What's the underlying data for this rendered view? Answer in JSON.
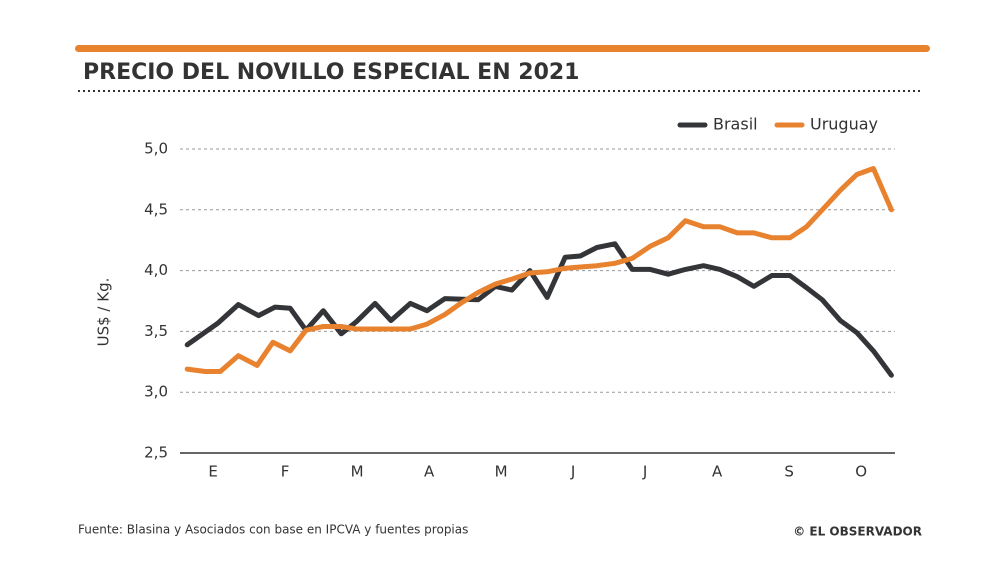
{
  "chart_data": {
    "type": "line",
    "title": "PRECIO DEL NOVILLO ESPECIAL EN 2021",
    "y_label": "US$ / Kg.",
    "source": "Fuente: Blasina y Asociados con base en IPCVA y fuentes propias",
    "credit": "© EL OBSERVADOR",
    "xlim": [
      -0.46,
      9.47
    ],
    "xticks": [
      {
        "value": 0,
        "label": "E"
      },
      {
        "value": 1,
        "label": "F"
      },
      {
        "value": 2,
        "label": "M"
      },
      {
        "value": 3,
        "label": "A"
      },
      {
        "value": 4,
        "label": "M"
      },
      {
        "value": 5,
        "label": "J"
      },
      {
        "value": 6,
        "label": "J"
      },
      {
        "value": 7,
        "label": "A"
      },
      {
        "value": 8,
        "label": "S"
      },
      {
        "value": 9,
        "label": "O"
      }
    ],
    "ylim": [
      2.5,
      5.0
    ],
    "yticks": [
      {
        "value": 2.5,
        "label": "2,5"
      },
      {
        "value": 3.0,
        "label": "3,0"
      },
      {
        "value": 3.5,
        "label": "3,5"
      },
      {
        "value": 4.0,
        "label": "4,0"
      },
      {
        "value": 4.5,
        "label": "4,5"
      },
      {
        "value": 5.0,
        "label": "5,0"
      }
    ],
    "grid": true,
    "legend": "top-right",
    "series": [
      {
        "name": "Brasil",
        "color": "#333538",
        "x": [
          -0.36,
          0.07,
          0.35,
          0.63,
          0.86,
          1.07,
          1.29,
          1.53,
          1.78,
          1.99,
          2.25,
          2.47,
          2.74,
          2.97,
          3.22,
          3.68,
          3.92,
          4.15,
          4.4,
          4.64,
          4.89,
          5.1,
          5.33,
          5.58,
          5.82,
          6.07,
          6.32,
          6.56,
          6.81,
          7.04,
          7.28,
          7.51,
          7.76,
          8.01,
          8.24,
          8.46,
          8.71,
          8.94,
          9.17,
          9.42
        ],
        "values": [
          3.39,
          3.57,
          3.72,
          3.63,
          3.7,
          3.69,
          3.51,
          3.67,
          3.48,
          3.58,
          3.73,
          3.59,
          3.73,
          3.67,
          3.77,
          3.76,
          3.87,
          3.84,
          4.0,
          3.78,
          4.11,
          4.12,
          4.19,
          4.22,
          4.01,
          4.01,
          3.97,
          4.01,
          4.04,
          4.01,
          3.95,
          3.87,
          3.96,
          3.96,
          3.86,
          3.76,
          3.59,
          3.49,
          3.34,
          3.14
        ]
      },
      {
        "name": "Uruguay",
        "color": "#e8822e",
        "x": [
          -0.36,
          -0.11,
          0.1,
          0.35,
          0.61,
          0.83,
          1.07,
          1.29,
          1.53,
          1.78,
          1.99,
          2.74,
          2.97,
          3.22,
          3.46,
          3.68,
          3.92,
          4.15,
          4.4,
          4.64,
          4.89,
          5.1,
          5.33,
          5.58,
          5.82,
          6.07,
          6.32,
          6.56,
          6.81,
          7.04,
          7.28,
          7.51,
          7.76,
          8.01,
          8.24,
          8.46,
          8.71,
          8.94,
          9.17,
          9.42
        ],
        "values": [
          3.19,
          3.17,
          3.17,
          3.3,
          3.22,
          3.41,
          3.34,
          3.51,
          3.54,
          3.54,
          3.52,
          3.52,
          3.56,
          3.64,
          3.74,
          3.82,
          3.89,
          3.93,
          3.98,
          3.99,
          4.02,
          4.03,
          4.04,
          4.06,
          4.1,
          4.2,
          4.27,
          4.41,
          4.36,
          4.36,
          4.31,
          4.31,
          4.27,
          4.27,
          4.36,
          4.5,
          4.66,
          4.79,
          4.84,
          4.5
        ]
      }
    ]
  }
}
